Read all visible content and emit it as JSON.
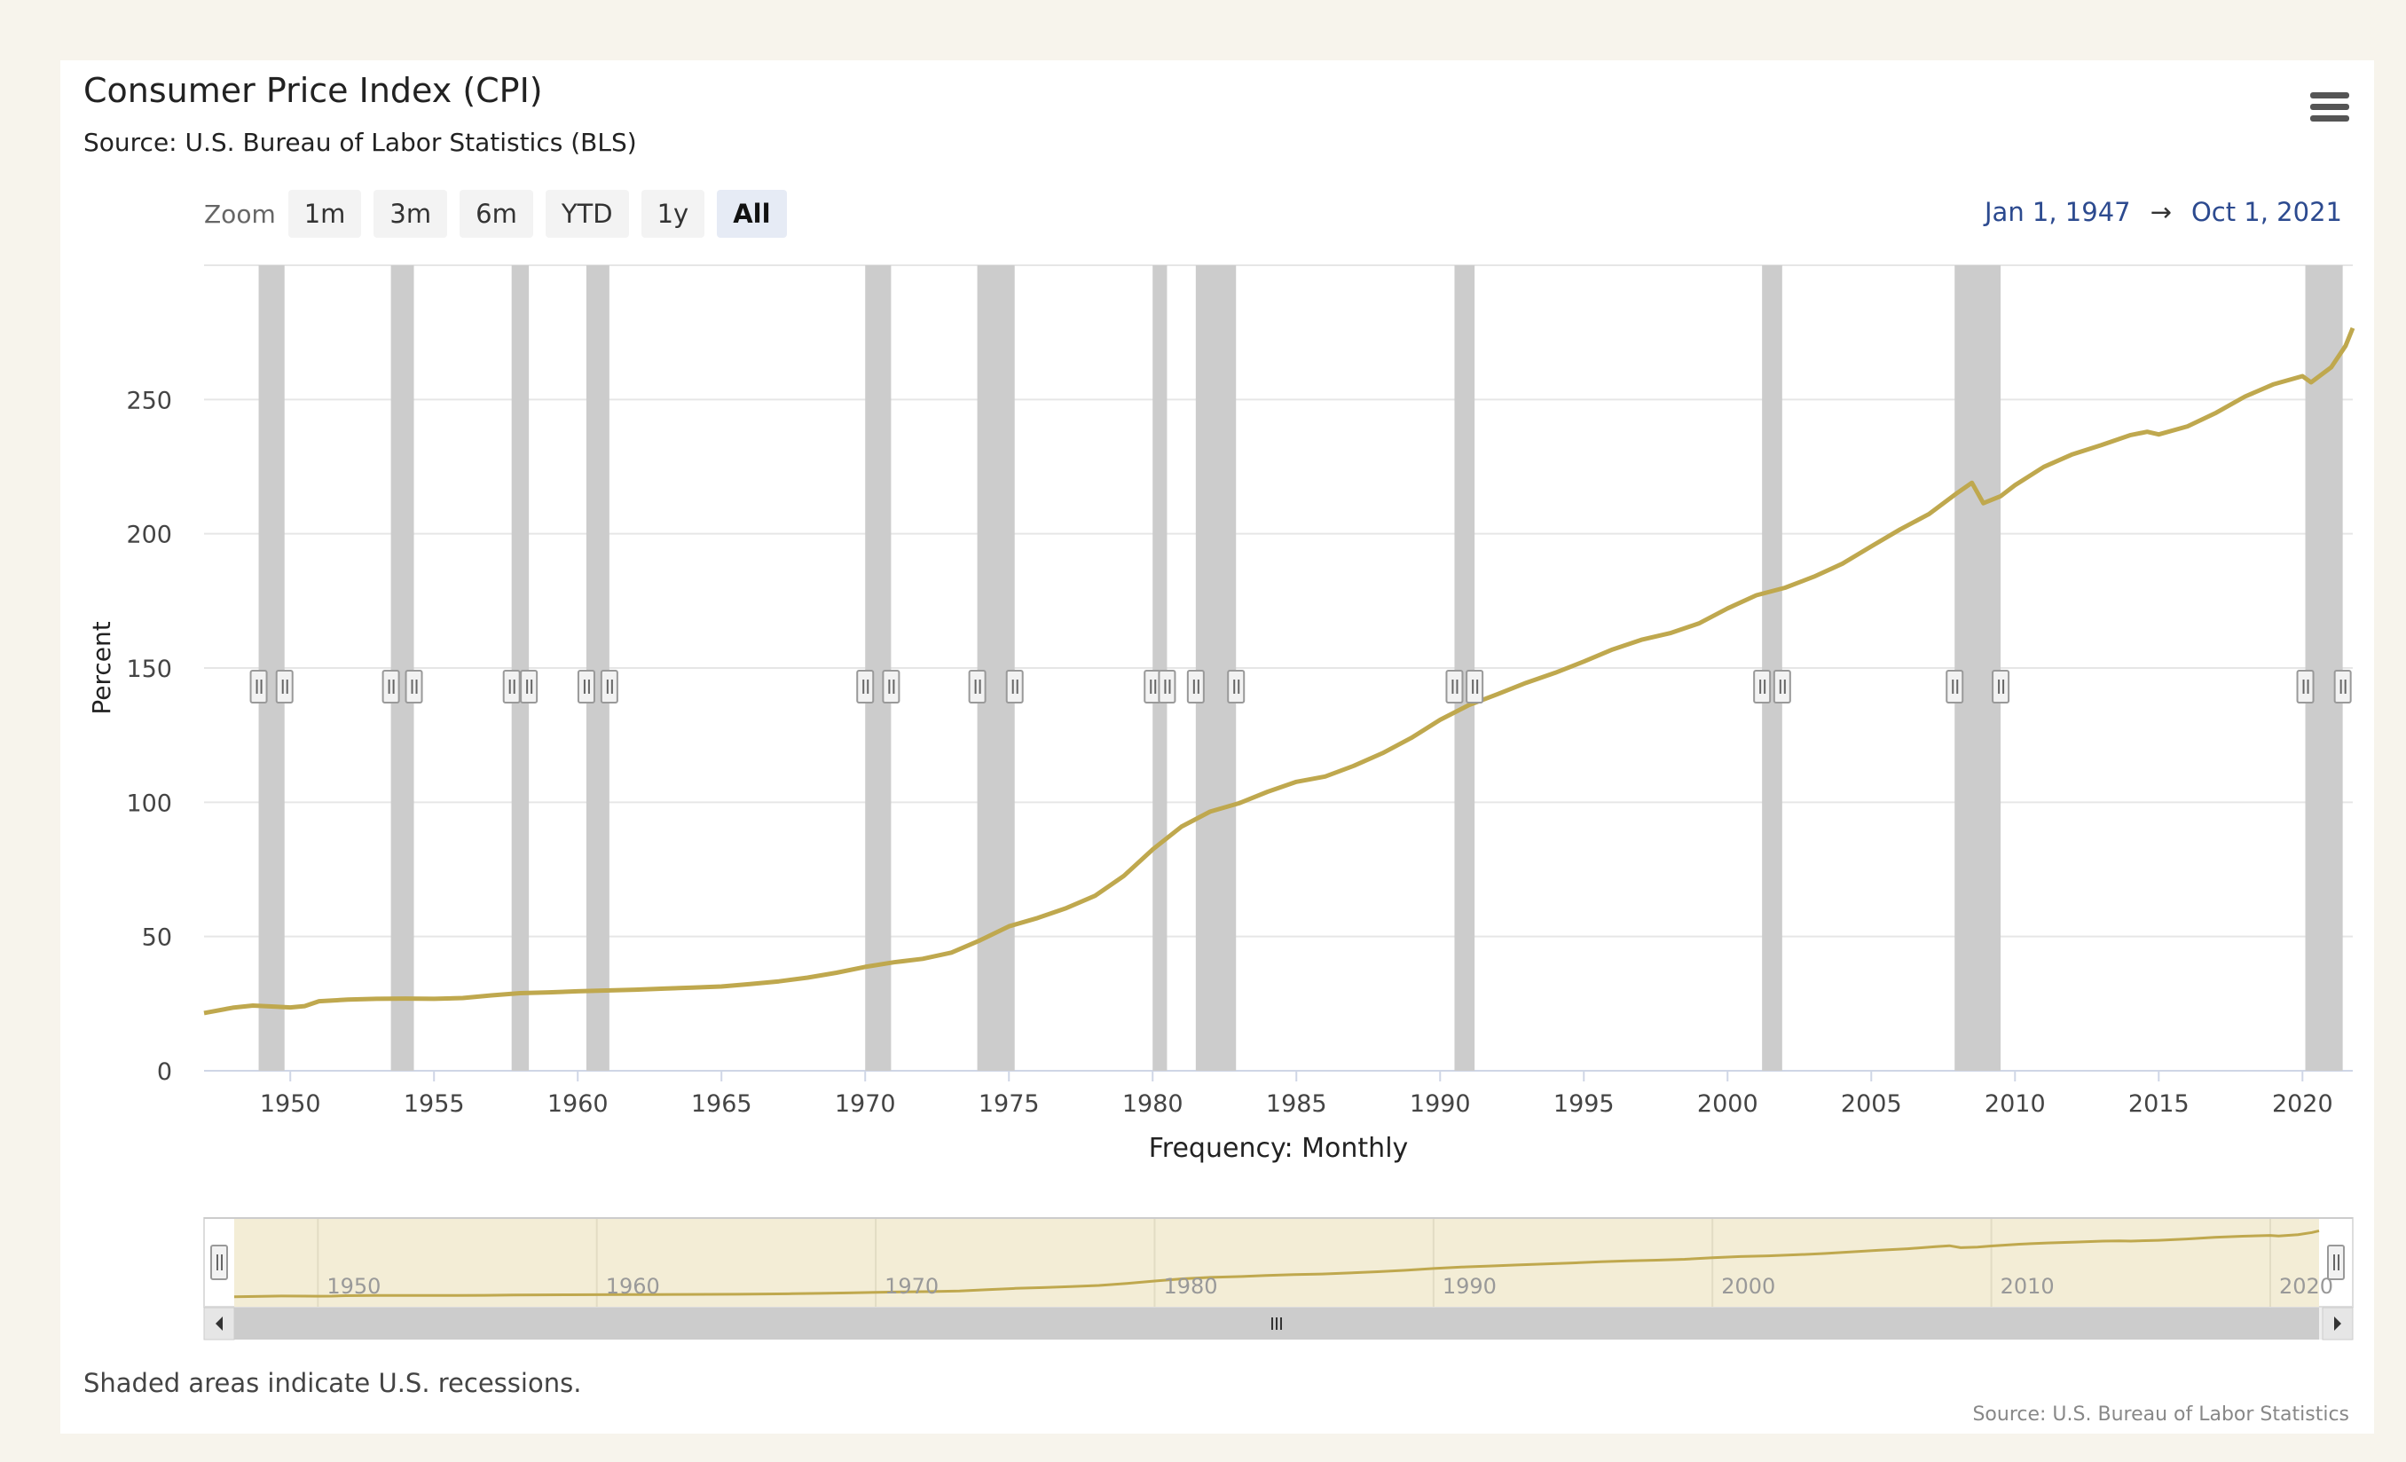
{
  "header": {
    "title": "Consumer Price Index (CPI)",
    "subtitle": "Source: U.S. Bureau of Labor Statistics (BLS)"
  },
  "menu_icon": "hamburger-menu-icon",
  "zoom": {
    "label": "Zoom",
    "buttons": [
      "1m",
      "3m",
      "6m",
      "YTD",
      "1y",
      "All"
    ],
    "active": "All"
  },
  "range": {
    "from": "Jan 1, 1947",
    "arrow": "→",
    "to": "Oct 1, 2021"
  },
  "footer": {
    "note": "Shaded areas indicate U.S. recessions.",
    "credit": "Source: U.S. Bureau of Labor Statistics"
  },
  "colors": {
    "line": "#bfa84e",
    "recession": "#cccccc",
    "navigator_fill": "#f3edd6",
    "range_text": "#2c4a8f"
  },
  "chart_data": {
    "type": "line",
    "title": "Consumer Price Index (CPI)",
    "xlabel": "Frequency: Monthly",
    "ylabel": "Percent",
    "xlim": [
      1947.0,
      2021.75
    ],
    "ylim": [
      0,
      300
    ],
    "y_ticks": [
      0,
      50,
      100,
      150,
      200,
      250
    ],
    "x_ticks": [
      1950,
      1955,
      1960,
      1965,
      1970,
      1975,
      1980,
      1985,
      1990,
      1995,
      2000,
      2005,
      2010,
      2015,
      2020
    ],
    "navigator_ticks": [
      1950,
      1960,
      1970,
      1980,
      1990,
      2000,
      2010,
      2020
    ],
    "grid": true,
    "recessions": [
      [
        1948.9,
        1949.8
      ],
      [
        1953.5,
        1954.3
      ],
      [
        1957.7,
        1958.3
      ],
      [
        1960.3,
        1961.1
      ],
      [
        1970.0,
        1970.9
      ],
      [
        1973.9,
        1975.2
      ],
      [
        1980.0,
        1980.5
      ],
      [
        1981.5,
        1982.9
      ],
      [
        1990.5,
        1991.2
      ],
      [
        2001.2,
        2001.9
      ],
      [
        2007.9,
        2009.5
      ],
      [
        2020.1,
        2021.4
      ]
    ],
    "series": [
      {
        "values": [
          [
            1947.0,
            21.5
          ],
          [
            1948.0,
            23.5
          ],
          [
            1948.7,
            24.3
          ],
          [
            1949.5,
            23.9
          ],
          [
            1950.0,
            23.6
          ],
          [
            1950.5,
            24.1
          ],
          [
            1951.0,
            25.9
          ],
          [
            1952.0,
            26.5
          ],
          [
            1953.0,
            26.8
          ],
          [
            1954.0,
            26.9
          ],
          [
            1955.0,
            26.8
          ],
          [
            1956.0,
            27.1
          ],
          [
            1957.0,
            28.1
          ],
          [
            1958.0,
            28.9
          ],
          [
            1959.0,
            29.2
          ],
          [
            1960.0,
            29.6
          ],
          [
            1961.0,
            29.9
          ],
          [
            1962.0,
            30.2
          ],
          [
            1963.0,
            30.6
          ],
          [
            1964.0,
            31.0
          ],
          [
            1965.0,
            31.4
          ],
          [
            1966.0,
            32.3
          ],
          [
            1967.0,
            33.3
          ],
          [
            1968.0,
            34.7
          ],
          [
            1969.0,
            36.5
          ],
          [
            1970.0,
            38.7
          ],
          [
            1971.0,
            40.4
          ],
          [
            1972.0,
            41.7
          ],
          [
            1973.0,
            44.0
          ],
          [
            1974.0,
            48.6
          ],
          [
            1975.0,
            53.8
          ],
          [
            1976.0,
            56.9
          ],
          [
            1977.0,
            60.6
          ],
          [
            1978.0,
            65.2
          ],
          [
            1979.0,
            72.6
          ],
          [
            1980.0,
            82.4
          ],
          [
            1981.0,
            90.9
          ],
          [
            1982.0,
            96.5
          ],
          [
            1983.0,
            99.6
          ],
          [
            1984.0,
            103.9
          ],
          [
            1985.0,
            107.6
          ],
          [
            1986.0,
            109.6
          ],
          [
            1987.0,
            113.6
          ],
          [
            1988.0,
            118.3
          ],
          [
            1989.0,
            124.0
          ],
          [
            1990.0,
            130.7
          ],
          [
            1991.0,
            136.2
          ],
          [
            1992.0,
            140.3
          ],
          [
            1993.0,
            144.5
          ],
          [
            1994.0,
            148.2
          ],
          [
            1995.0,
            152.4
          ],
          [
            1996.0,
            156.9
          ],
          [
            1997.0,
            160.5
          ],
          [
            1998.0,
            163.0
          ],
          [
            1999.0,
            166.6
          ],
          [
            2000.0,
            172.2
          ],
          [
            2001.0,
            177.1
          ],
          [
            2002.0,
            179.9
          ],
          [
            2003.0,
            184.0
          ],
          [
            2004.0,
            188.9
          ],
          [
            2005.0,
            195.3
          ],
          [
            2006.0,
            201.6
          ],
          [
            2007.0,
            207.3
          ],
          [
            2008.0,
            215.3
          ],
          [
            2008.5,
            219.0
          ],
          [
            2008.9,
            211.4
          ],
          [
            2009.5,
            214.0
          ],
          [
            2010.0,
            218.1
          ],
          [
            2011.0,
            224.9
          ],
          [
            2012.0,
            229.6
          ],
          [
            2013.0,
            233.0
          ],
          [
            2014.0,
            236.7
          ],
          [
            2014.6,
            238.0
          ],
          [
            2015.0,
            237.0
          ],
          [
            2016.0,
            240.0
          ],
          [
            2017.0,
            245.1
          ],
          [
            2018.0,
            251.1
          ],
          [
            2019.0,
            255.7
          ],
          [
            2020.0,
            258.7
          ],
          [
            2020.3,
            256.4
          ],
          [
            2021.0,
            262.0
          ],
          [
            2021.5,
            270.0
          ],
          [
            2021.75,
            276.6
          ]
        ]
      }
    ]
  }
}
